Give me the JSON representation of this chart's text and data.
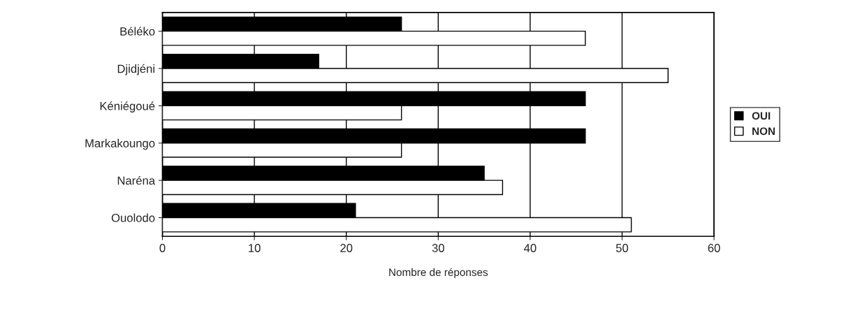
{
  "chart_data": {
    "type": "bar",
    "orientation": "horizontal",
    "xlabel": "Nombre de réponses",
    "categories": [
      "Béléko",
      "Djidjéni",
      "Kéniégoué",
      "Markakoungo",
      "Naréna",
      "Ouolodo"
    ],
    "series": [
      {
        "name": "OUI",
        "color": "#000000",
        "values": [
          26,
          17,
          46,
          46,
          35,
          21
        ]
      },
      {
        "name": "NON",
        "color": "#ffffff",
        "values": [
          46,
          55,
          26,
          26,
          37,
          51
        ]
      }
    ],
    "xlim": [
      0,
      60
    ],
    "xticks": [
      0,
      10,
      20,
      30,
      40,
      50,
      60
    ],
    "grid": "x",
    "legend": "right"
  }
}
